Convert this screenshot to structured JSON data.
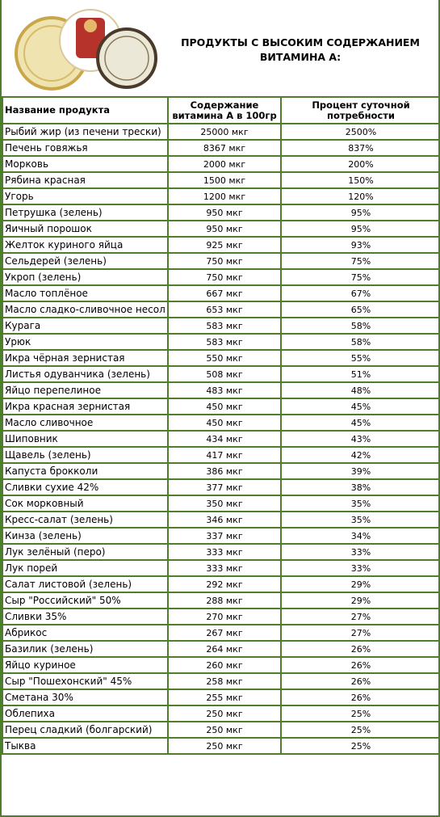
{
  "header": {
    "title": "ПРОДУКТЫ С ВЫСОКИМ СОДЕРЖАНИЕМ ВИТАМИНА А:"
  },
  "table": {
    "columns": [
      "Название продукта",
      "Содержание витамина А в 100гр",
      "Процент суточной потребности"
    ],
    "rows": [
      [
        "Рыбий жир (из печени трески)",
        "25000 мкг",
        "2500%"
      ],
      [
        "Печень говяжья",
        "8367 мкг",
        "837%"
      ],
      [
        "Морковь",
        "2000 мкг",
        "200%"
      ],
      [
        "Рябина красная",
        "1500 мкг",
        "150%"
      ],
      [
        "Угорь",
        "1200 мкг",
        "120%"
      ],
      [
        "Петрушка (зелень)",
        "950 мкг",
        "95%"
      ],
      [
        "Яичный порошок",
        "950 мкг",
        "95%"
      ],
      [
        "Желток куриного яйца",
        "925 мкг",
        "93%"
      ],
      [
        "Сельдерей (зелень)",
        "750 мкг",
        "75%"
      ],
      [
        "Укроп (зелень)",
        "750 мкг",
        "75%"
      ],
      [
        "Масло топлёное",
        "667 мкг",
        "67%"
      ],
      [
        "Масло сладко-сливочное несол",
        "653 мкг",
        "65%"
      ],
      [
        "Курага",
        "583 мкг",
        "58%"
      ],
      [
        "Урюк",
        "583 мкг",
        "58%"
      ],
      [
        "Икра чёрная зернистая",
        "550 мкг",
        "55%"
      ],
      [
        "Листья одуванчика (зелень)",
        "508 мкг",
        "51%"
      ],
      [
        "Яйцо перепелиное",
        "483 мкг",
        "48%"
      ],
      [
        "Икра красная зернистая",
        "450 мкг",
        "45%"
      ],
      [
        "Масло сливочное",
        "450 мкг",
        "45%"
      ],
      [
        "Шиповник",
        "434 мкг",
        "43%"
      ],
      [
        "Щавель (зелень)",
        "417 мкг",
        "42%"
      ],
      [
        "Капуста брокколи",
        "386 мкг",
        "39%"
      ],
      [
        "Сливки сухие 42%",
        "377 мкг",
        "38%"
      ],
      [
        "Сок морковный",
        "350 мкг",
        "35%"
      ],
      [
        "Кресс-салат (зелень)",
        "346 мкг",
        "35%"
      ],
      [
        "Кинза (зелень)",
        "337 мкг",
        "34%"
      ],
      [
        "Лук зелёный (перо)",
        "333 мкг",
        "33%"
      ],
      [
        "Лук порей",
        "333 мкг",
        "33%"
      ],
      [
        "Салат листовой (зелень)",
        "292 мкг",
        "29%"
      ],
      [
        "Сыр \"Российский\" 50%",
        "288 мкг",
        "29%"
      ],
      [
        "Сливки 35%",
        "270 мкг",
        "27%"
      ],
      [
        "Абрикос",
        "267 мкг",
        "27%"
      ],
      [
        "Базилик (зелень)",
        "264 мкг",
        "26%"
      ],
      [
        "Яйцо куриное",
        "260 мкг",
        "26%"
      ],
      [
        "Сыр \"Пошехонский\" 45%",
        "258 мкг",
        "26%"
      ],
      [
        "Сметана 30%",
        "255 мкг",
        "26%"
      ],
      [
        "Облепиха",
        "250 мкг",
        "25%"
      ],
      [
        "Перец сладкий (болгарский)",
        "250 мкг",
        "25%"
      ],
      [
        "Тыква",
        "250 мкг",
        "25%"
      ]
    ]
  }
}
